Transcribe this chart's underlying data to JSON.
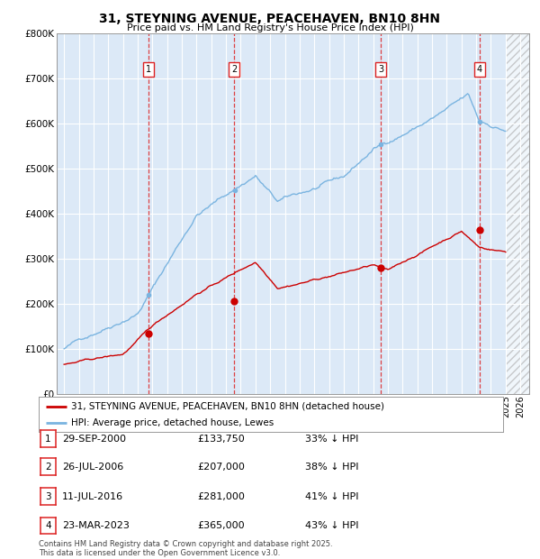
{
  "title": "31, STEYNING AVENUE, PEACEHAVEN, BN10 8HN",
  "subtitle": "Price paid vs. HM Land Registry's House Price Index (HPI)",
  "background_color": "#ffffff",
  "plot_bg_color": "#dce9f7",
  "grid_color": "#ffffff",
  "ylim": [
    0,
    800000
  ],
  "yticks": [
    0,
    100000,
    200000,
    300000,
    400000,
    500000,
    600000,
    700000,
    800000
  ],
  "sale_dates_num": [
    2000.747,
    2006.567,
    2016.528,
    2023.228
  ],
  "sale_prices": [
    133750,
    207000,
    281000,
    365000
  ],
  "sale_labels": [
    "1",
    "2",
    "3",
    "4"
  ],
  "vline_color": "#dd2222",
  "sale_color": "#cc0000",
  "hpi_color": "#7ab4e0",
  "legend_sale_label": "31, STEYNING AVENUE, PEACEHAVEN, BN10 8HN (detached house)",
  "legend_hpi_label": "HPI: Average price, detached house, Lewes",
  "table_rows": [
    [
      "1",
      "29-SEP-2000",
      "£133,750",
      "33% ↓ HPI"
    ],
    [
      "2",
      "26-JUL-2006",
      "£207,000",
      "38% ↓ HPI"
    ],
    [
      "3",
      "11-JUL-2016",
      "£281,000",
      "41% ↓ HPI"
    ],
    [
      "4",
      "23-MAR-2023",
      "£365,000",
      "43% ↓ HPI"
    ]
  ],
  "footer": "Contains HM Land Registry data © Crown copyright and database right 2025.\nThis data is licensed under the Open Government Licence v3.0.",
  "hatch_start": 2025.0,
  "xlim_min": 1994.5,
  "xlim_max": 2026.6
}
